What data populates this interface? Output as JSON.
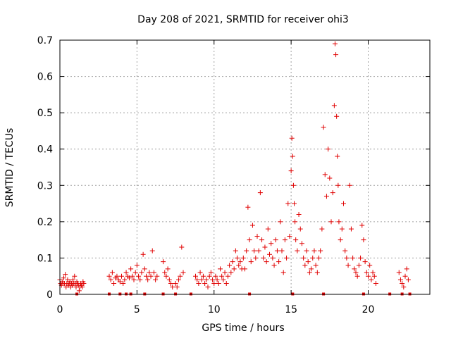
{
  "chart_data": {
    "type": "scatter",
    "title": "Day 208 of 2021, SRMTID for receiver ohi3",
    "xlabel": "GPS time / hours",
    "ylabel": "SRMTID / TECUs",
    "xlim": [
      0,
      24
    ],
    "ylim": [
      0,
      0.7
    ],
    "xticks": [
      0,
      5,
      10,
      15,
      20
    ],
    "xtick_labels": [
      "0",
      "5",
      "10",
      "15",
      "20"
    ],
    "yticks": [
      0,
      0.1,
      0.2,
      0.3,
      0.4,
      0.5,
      0.6,
      0.7
    ],
    "ytick_labels": [
      "0",
      "0.1",
      "0.2",
      "0.3",
      "0.4",
      "0.5",
      "0.6",
      "0.7"
    ],
    "grid": true,
    "marker": "+",
    "color": "#e00000",
    "series": [
      {
        "name": "SRMTID",
        "x": [
          0.0,
          0.05,
          0.1,
          0.15,
          0.2,
          0.25,
          0.3,
          0.35,
          0.4,
          0.45,
          0.5,
          0.55,
          0.6,
          0.65,
          0.7,
          0.75,
          0.8,
          0.85,
          0.9,
          0.95,
          1.0,
          1.05,
          1.1,
          1.15,
          1.2,
          1.25,
          1.3,
          1.35,
          1.4,
          1.45,
          1.5,
          1.55,
          3.2,
          3.3,
          3.4,
          3.5,
          3.6,
          3.7,
          3.8,
          3.9,
          4.0,
          4.1,
          4.2,
          4.3,
          4.4,
          4.5,
          4.6,
          4.7,
          4.8,
          4.9,
          5.0,
          5.1,
          5.2,
          5.3,
          5.4,
          5.5,
          5.6,
          5.7,
          5.8,
          5.9,
          6.0,
          6.1,
          6.2,
          6.3,
          6.7,
          6.8,
          6.9,
          7.0,
          7.1,
          7.2,
          7.3,
          7.5,
          7.6,
          7.7,
          7.8,
          7.9,
          8.0,
          8.8,
          8.9,
          9.0,
          9.1,
          9.2,
          9.3,
          9.4,
          9.5,
          9.6,
          9.7,
          9.8,
          9.9,
          10.0,
          10.1,
          10.2,
          10.3,
          10.4,
          10.5,
          10.6,
          10.7,
          10.8,
          10.9,
          11.0,
          11.1,
          11.2,
          11.3,
          11.4,
          11.5,
          11.6,
          11.7,
          11.8,
          11.9,
          12.0,
          12.1,
          12.2,
          12.3,
          12.4,
          12.5,
          12.6,
          12.7,
          12.8,
          12.9,
          13.0,
          13.1,
          13.2,
          13.3,
          13.4,
          13.5,
          13.6,
          13.7,
          13.8,
          13.9,
          14.0,
          14.1,
          14.2,
          14.3,
          14.4,
          14.5,
          14.6,
          14.7,
          14.8,
          14.9,
          15.0,
          15.05,
          15.1,
          15.15,
          15.2,
          15.25,
          15.3,
          15.4,
          15.5,
          15.6,
          15.7,
          15.8,
          15.9,
          16.0,
          16.1,
          16.2,
          16.3,
          16.4,
          16.5,
          16.6,
          16.7,
          16.8,
          16.9,
          17.0,
          17.1,
          17.2,
          17.3,
          17.4,
          17.5,
          17.6,
          17.7,
          17.8,
          17.85,
          17.9,
          17.95,
          18.0,
          18.05,
          18.1,
          18.2,
          18.3,
          18.4,
          18.5,
          18.6,
          18.7,
          18.8,
          18.9,
          19.0,
          19.1,
          19.2,
          19.3,
          19.4,
          19.5,
          19.6,
          19.7,
          19.8,
          19.9,
          20.0,
          20.1,
          20.2,
          20.3,
          20.4,
          20.5,
          22.0,
          22.1,
          22.2,
          22.3,
          22.4,
          22.5,
          22.6
        ],
        "y": [
          0.04,
          0.03,
          0.025,
          0.035,
          0.03,
          0.045,
          0.03,
          0.055,
          0.02,
          0.03,
          0.04,
          0.025,
          0.03,
          0.035,
          0.02,
          0.03,
          0.025,
          0.04,
          0.03,
          0.05,
          0.03,
          0.02,
          0.035,
          0.03,
          0.025,
          0.01,
          0.02,
          0.03,
          0.025,
          0.02,
          0.035,
          0.03,
          0.05,
          0.04,
          0.06,
          0.03,
          0.045,
          0.05,
          0.04,
          0.035,
          0.05,
          0.03,
          0.04,
          0.06,
          0.05,
          0.045,
          0.07,
          0.05,
          0.04,
          0.06,
          0.08,
          0.05,
          0.04,
          0.06,
          0.11,
          0.07,
          0.05,
          0.04,
          0.06,
          0.05,
          0.12,
          0.06,
          0.04,
          0.05,
          0.09,
          0.06,
          0.05,
          0.07,
          0.04,
          0.03,
          0.02,
          0.03,
          0.02,
          0.04,
          0.05,
          0.13,
          0.06,
          0.05,
          0.04,
          0.03,
          0.06,
          0.04,
          0.05,
          0.03,
          0.04,
          0.02,
          0.05,
          0.06,
          0.04,
          0.03,
          0.05,
          0.04,
          0.03,
          0.07,
          0.05,
          0.04,
          0.06,
          0.03,
          0.05,
          0.08,
          0.06,
          0.09,
          0.07,
          0.12,
          0.1,
          0.08,
          0.09,
          0.07,
          0.1,
          0.07,
          0.12,
          0.24,
          0.15,
          0.09,
          0.19,
          0.12,
          0.1,
          0.16,
          0.12,
          0.28,
          0.15,
          0.1,
          0.13,
          0.09,
          0.18,
          0.11,
          0.14,
          0.1,
          0.08,
          0.15,
          0.12,
          0.09,
          0.2,
          0.12,
          0.06,
          0.15,
          0.1,
          0.25,
          0.16,
          0.34,
          0.43,
          0.38,
          0.3,
          0.25,
          0.2,
          0.15,
          0.12,
          0.22,
          0.18,
          0.14,
          0.1,
          0.08,
          0.12,
          0.09,
          0.06,
          0.07,
          0.1,
          0.12,
          0.08,
          0.06,
          0.1,
          0.12,
          0.18,
          0.46,
          0.33,
          0.27,
          0.4,
          0.32,
          0.2,
          0.28,
          0.52,
          0.69,
          0.66,
          0.49,
          0.38,
          0.3,
          0.2,
          0.15,
          0.18,
          0.25,
          0.12,
          0.1,
          0.08,
          0.3,
          0.18,
          0.1,
          0.07,
          0.06,
          0.05,
          0.08,
          0.1,
          0.19,
          0.15,
          0.09,
          0.06,
          0.05,
          0.08,
          0.04,
          0.06,
          0.05,
          0.03,
          0.06,
          0.04,
          0.03,
          0.02,
          0.05,
          0.07,
          0.04
        ]
      }
    ],
    "baseline_x": [
      1.1,
      3.2,
      3.9,
      4.3,
      4.6,
      5.5,
      6.7,
      7.5,
      8.5,
      12.3,
      15.1,
      17.1,
      19.7,
      21.4,
      22.2,
      22.7
    ]
  }
}
